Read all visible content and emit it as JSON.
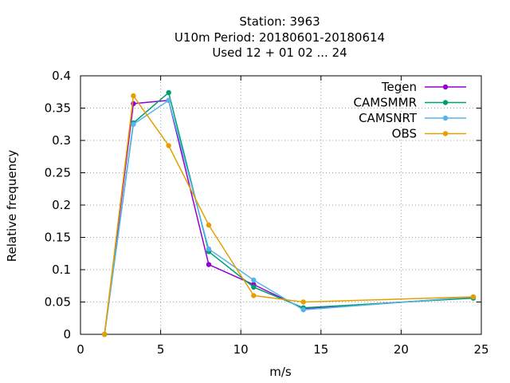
{
  "chart_data": {
    "type": "line",
    "title_lines": [
      "Station:     3963",
      "U10m  Period: 20180601-20180614",
      "Used  12 + 01 02 ... 24"
    ],
    "xlabel": "m/s",
    "ylabel": "Relative frequency",
    "xlim": [
      0,
      25
    ],
    "ylim": [
      0,
      0.4
    ],
    "x_ticks": [
      0,
      5,
      10,
      15,
      20,
      25
    ],
    "y_ticks": [
      0,
      0.05,
      0.1,
      0.15,
      0.2,
      0.25,
      0.3,
      0.35,
      0.4
    ],
    "x_tick_labels": [
      "0",
      "5",
      "10",
      "15",
      "20",
      "25"
    ],
    "y_tick_labels": [
      "0",
      "0.05",
      "0.1",
      "0.15",
      "0.2",
      "0.25",
      "0.3",
      "0.35",
      "0.4"
    ],
    "grid": true,
    "legend_position": "top-right",
    "series": [
      {
        "name": "Tegen",
        "color": "#9400d3",
        "x": [
          1.5,
          3.3,
          5.5,
          8.0,
          10.8,
          13.9,
          24.5
        ],
        "y": [
          0.0,
          0.357,
          0.362,
          0.108,
          0.077,
          0.04,
          0.057
        ]
      },
      {
        "name": "CAMSMMR",
        "color": "#009e73",
        "x": [
          1.5,
          3.3,
          5.5,
          8.0,
          10.8,
          13.9,
          24.5
        ],
        "y": [
          0.0,
          0.327,
          0.374,
          0.128,
          0.073,
          0.041,
          0.056
        ]
      },
      {
        "name": "CAMSNRT",
        "color": "#56b4e9",
        "x": [
          1.5,
          3.3,
          5.5,
          8.0,
          10.8,
          13.9,
          24.5
        ],
        "y": [
          0.0,
          0.325,
          0.362,
          0.132,
          0.084,
          0.038,
          0.058
        ]
      },
      {
        "name": "OBS",
        "color": "#e69f00",
        "x": [
          1.5,
          3.3,
          5.5,
          8.0,
          10.8,
          13.9,
          24.5
        ],
        "y": [
          0.0,
          0.369,
          0.292,
          0.169,
          0.06,
          0.05,
          0.058
        ]
      }
    ]
  }
}
